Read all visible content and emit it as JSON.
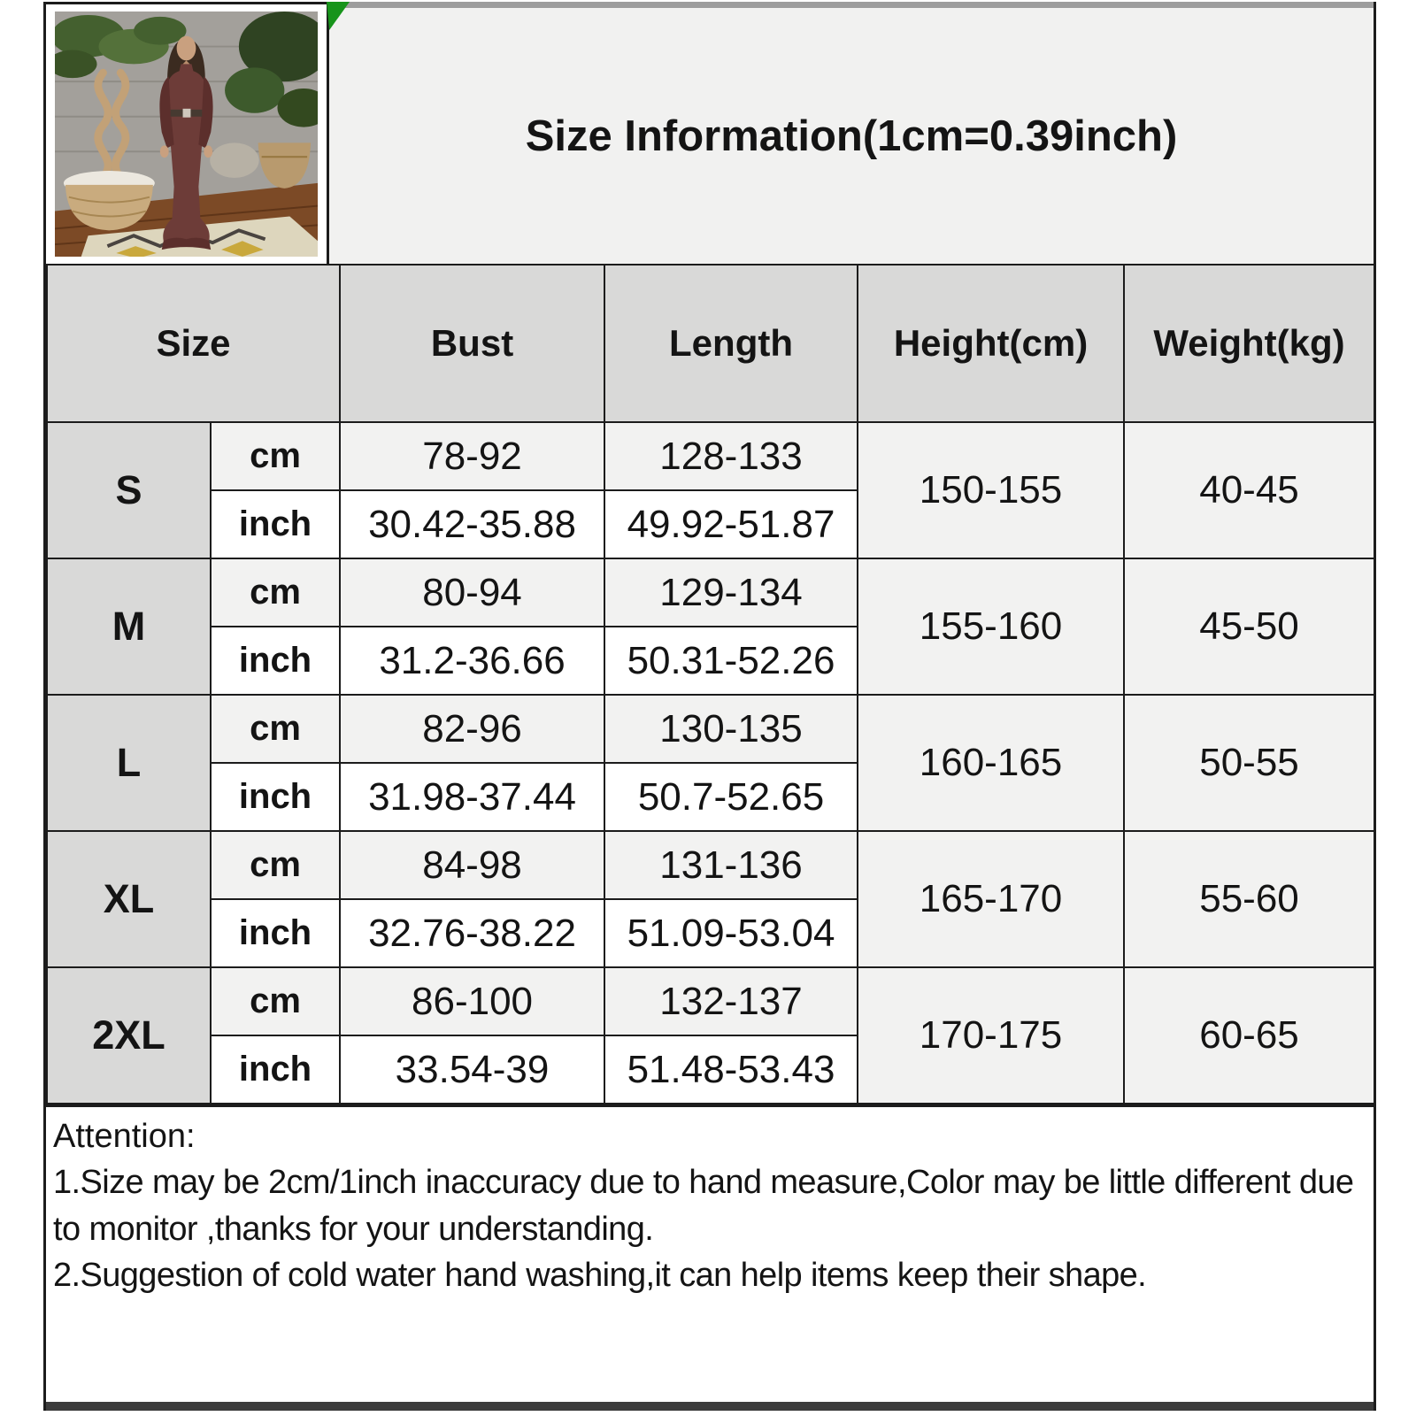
{
  "title": "Size Information(1cm=0.39inch)",
  "photo": {
    "description": "model wearing long brown knit dress standing in room with plants, baskets and patterned rug"
  },
  "table": {
    "headers": [
      "Size",
      "Bust",
      "Length",
      "Height(cm)",
      "Weight(kg)"
    ],
    "unit_labels": [
      "cm",
      "inch"
    ],
    "rows": [
      {
        "size": "S",
        "cm": {
          "bust": "78-92",
          "length": "128-133"
        },
        "inch": {
          "bust": "30.42-35.88",
          "length": "49.92-51.87"
        },
        "height": "150-155",
        "weight": "40-45"
      },
      {
        "size": "M",
        "cm": {
          "bust": "80-94",
          "length": "129-134"
        },
        "inch": {
          "bust": "31.2-36.66",
          "length": "50.31-52.26"
        },
        "height": "155-160",
        "weight": "45-50"
      },
      {
        "size": "L",
        "cm": {
          "bust": "82-96",
          "length": "130-135"
        },
        "inch": {
          "bust": "31.98-37.44",
          "length": "50.7-52.65"
        },
        "height": "160-165",
        "weight": "50-55"
      },
      {
        "size": "XL",
        "cm": {
          "bust": "84-98",
          "length": "131-136"
        },
        "inch": {
          "bust": "32.76-38.22",
          "length": "51.09-53.04"
        },
        "height": "165-170",
        "weight": "55-60"
      },
      {
        "size": "2XL",
        "cm": {
          "bust": "86-100",
          "length": "132-137"
        },
        "inch": {
          "bust": "33.54-39",
          "length": "51.48-53.43"
        },
        "height": "170-175",
        "weight": "60-65"
      }
    ]
  },
  "attention": {
    "heading": "Attention:",
    "notes": [
      "1.Size may be 2cm/1inch inaccuracy due to hand measure,Color may be little different due to monitor ,thanks for your understanding.",
      "2.Suggestion of cold water hand washing,it can help items keep their shape."
    ]
  },
  "colors": {
    "corner_flag_green": "#17941b",
    "header_gray": "#d9d9d8",
    "alt_row_gray": "#f2f2f1",
    "border_black": "#1c1c1c",
    "dress_brown": "#6d3c38"
  }
}
